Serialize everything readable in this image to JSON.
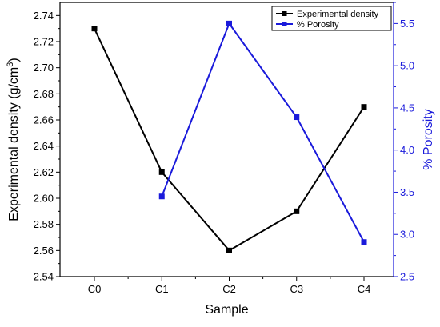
{
  "chart_data": {
    "type": "line",
    "categories": [
      "C0",
      "C1",
      "C2",
      "C3",
      "C4"
    ],
    "xlabel": "Sample",
    "y_left": {
      "label": "Experimental density (g/cm",
      "label_superscript": "3",
      "label_suffix": ")",
      "ylim": [
        2.54,
        2.75
      ],
      "ticks": [
        2.54,
        2.56,
        2.58,
        2.6,
        2.62,
        2.64,
        2.66,
        2.68,
        2.7,
        2.72,
        2.74
      ],
      "tick_labels": [
        "2.54",
        "2.56",
        "2.58",
        "2.60",
        "2.62",
        "2.64",
        "2.66",
        "2.68",
        "2.70",
        "2.72",
        "2.74"
      ]
    },
    "y_right": {
      "label": "% Porosity",
      "ylim": [
        2.5,
        5.75
      ],
      "ticks": [
        2.5,
        3.0,
        3.5,
        4.0,
        4.5,
        5.0,
        5.5
      ],
      "tick_labels": [
        "2.5",
        "3.0",
        "3.5",
        "4.0",
        "4.5",
        "5.0",
        "5.5"
      ],
      "color": "#1a1adb"
    },
    "series": [
      {
        "name": "Experimental density",
        "axis": "left",
        "color": "#000000",
        "points": [
          {
            "x": "C0",
            "y": 2.73
          },
          {
            "x": "C1",
            "y": 2.62
          },
          {
            "x": "C2",
            "y": 2.56
          },
          {
            "x": "C3",
            "y": 2.59
          },
          {
            "x": "C4",
            "y": 2.67
          }
        ]
      },
      {
        "name": "% Porosity",
        "axis": "right",
        "color": "#1a1adb",
        "points": [
          {
            "x": "C1",
            "y": 3.45
          },
          {
            "x": "C2",
            "y": 5.5
          },
          {
            "x": "C3",
            "y": 4.39
          },
          {
            "x": "C4",
            "y": 2.91
          }
        ]
      }
    ],
    "legend": {
      "position": "top-right"
    },
    "grid": false
  }
}
